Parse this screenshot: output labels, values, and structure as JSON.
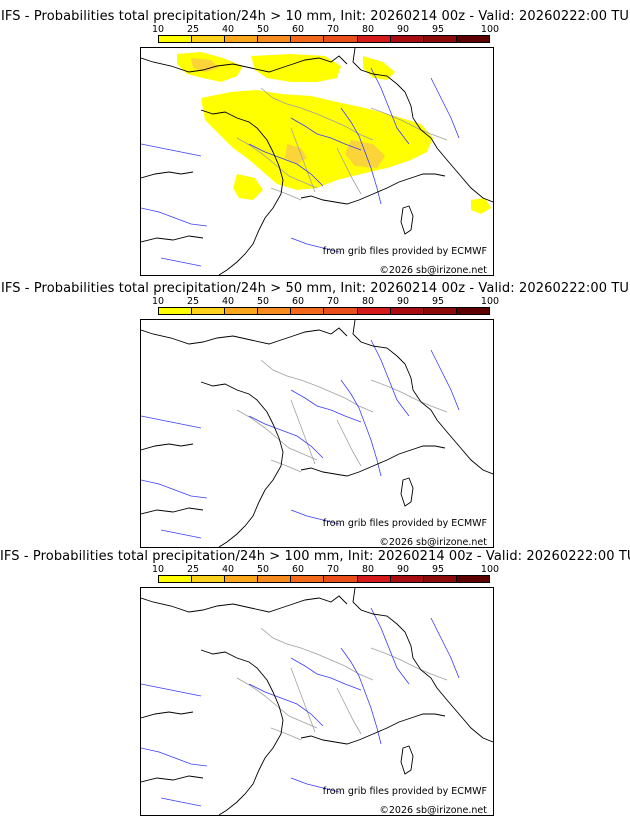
{
  "colorbar": {
    "ticks": [
      "10",
      "25",
      "40",
      "50",
      "60",
      "70",
      "80",
      "90",
      "95",
      "100"
    ],
    "colors": [
      "#ffff00",
      "#fdd21e",
      "#f9a81b",
      "#f68b1f",
      "#f2691b",
      "#e94e1b",
      "#d41a1a",
      "#a80d12",
      "#8b0a0a",
      "#5c0000"
    ]
  },
  "map_styles": {
    "coast": "#000000",
    "river": "#3c3cff",
    "border": "#a0a0a0",
    "prob": "#ffff00",
    "prob_mid": "#fbd43a"
  },
  "panels": [
    {
      "title": "IFS - Probabilities total precipitation/24h > 10 mm, Init: 20260214 00z - Valid: 20260222:00 TU",
      "source": "from grib files provided by ECMWF",
      "copyright": "©2026 sb@irizone.net",
      "has_precip": true
    },
    {
      "title": "IFS - Probabilities total precipitation/24h > 50 mm, Init: 20260214 00z - Valid: 20260222:00 TU",
      "source": "from grib files provided by ECMWF",
      "copyright": "©2026 sb@irizone.net",
      "has_precip": false
    },
    {
      "title": "IFS - Probabilities total precipitation/24h > 100 mm, Init: 20260214 00z - Valid: 20260222:00 TU",
      "source": "from grib files provided by ECMWF",
      "copyright": "©2026 sb@irizone.net",
      "has_precip": false
    }
  ]
}
